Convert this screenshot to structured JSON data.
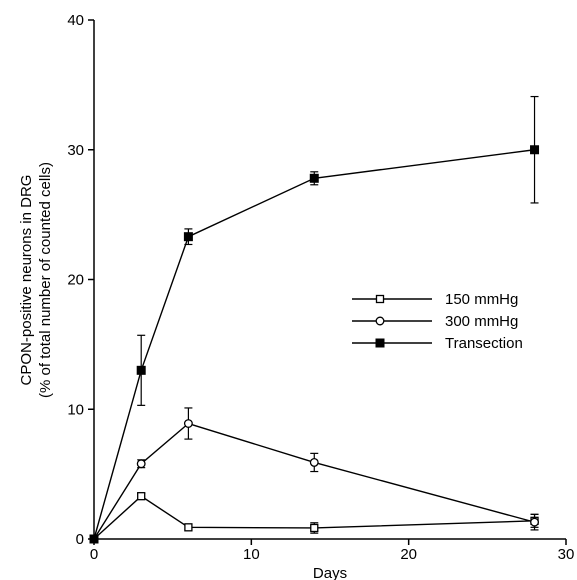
{
  "chart_data": {
    "type": "line",
    "xlabel": "Days",
    "ylabel_line1": "CPON-positive neurons in DRG",
    "ylabel_line2": "(% of total number of counted cells)",
    "xlim": [
      0,
      30
    ],
    "ylim": [
      0,
      40
    ],
    "xticks": [
      0,
      10,
      20,
      30
    ],
    "yticks": [
      0,
      10,
      20,
      30,
      40
    ],
    "grid": false,
    "legend_position": "center-right",
    "series": [
      {
        "name": "150 mmHg",
        "marker": "open-square",
        "x": [
          0,
          3,
          6,
          14,
          28
        ],
        "y": [
          0,
          3.3,
          0.9,
          0.85,
          1.4
        ],
        "err": [
          0,
          0.2,
          0.2,
          0.4,
          0.5
        ]
      },
      {
        "name": "300 mmHg",
        "marker": "open-circle",
        "x": [
          0,
          3,
          6,
          14,
          28
        ],
        "y": [
          0,
          5.8,
          8.9,
          5.9,
          1.3
        ],
        "err": [
          0,
          0.3,
          1.2,
          0.7,
          0.6
        ]
      },
      {
        "name": "Transection",
        "marker": "filled-square",
        "x": [
          0,
          3,
          6,
          14,
          28
        ],
        "y": [
          0,
          13.0,
          23.3,
          27.8,
          30.0
        ],
        "err": [
          0,
          2.7,
          0.6,
          0.5,
          4.1
        ]
      }
    ]
  }
}
